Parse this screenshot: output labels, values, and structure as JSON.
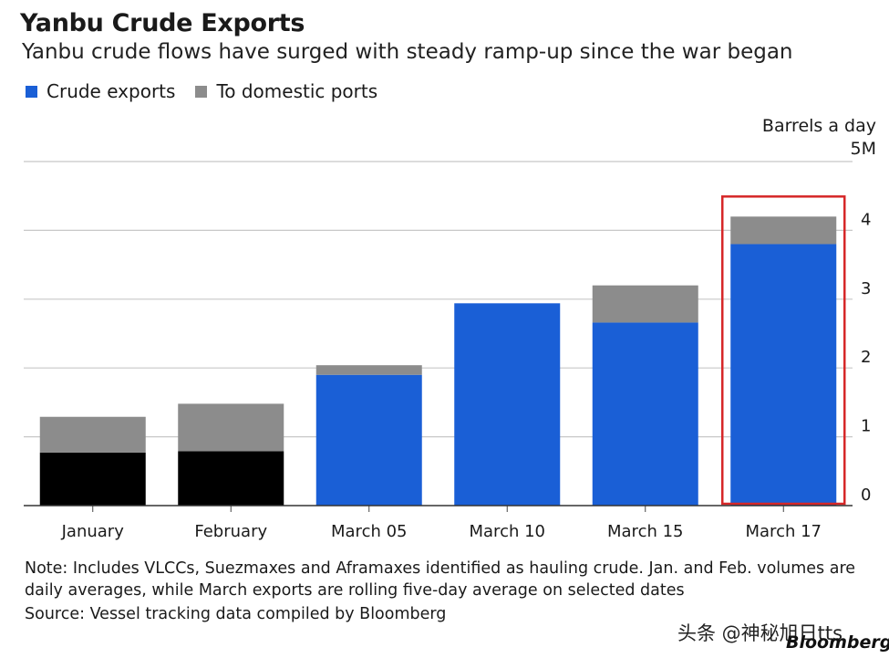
{
  "header": {
    "title": "Yanbu Crude Exports",
    "subtitle": "Yanbu crude flows have surged with steady ramp-up since the war began"
  },
  "legend": {
    "items": [
      {
        "label": "Crude exports",
        "color": "#1a5fd6"
      },
      {
        "label": "To domestic ports",
        "color": "#8c8c8c"
      }
    ]
  },
  "axis_unit": {
    "line1": "Barrels a day",
    "line2": "5M"
  },
  "chart_data": {
    "type": "bar",
    "stacked": true,
    "categories": [
      "January",
      "February",
      "March 05",
      "March 10",
      "March 15",
      "March 17"
    ],
    "series": [
      {
        "name": "Crude exports",
        "values": [
          0.77,
          0.79,
          1.9,
          2.94,
          2.66,
          3.8
        ],
        "color": "#1a5fd6"
      },
      {
        "name": "To domestic ports",
        "values": [
          0.52,
          0.69,
          0.14,
          0.0,
          0.54,
          0.4
        ],
        "color": "#8c8c8c"
      }
    ],
    "base_color_override": {
      "January": "#000000",
      "February": "#000000"
    },
    "highlight_category": "March 17",
    "highlight_color": "#d62728",
    "ylim": [
      0,
      5
    ],
    "yticks": [
      0,
      1,
      2,
      3,
      4
    ],
    "ylabel": "Barrels a day",
    "y_axis_side": "right",
    "grid": true
  },
  "footer": {
    "note": "Note: Includes VLCCs, Suezmaxes and Aframaxes identified as hauling crude. Jan. and Feb. volumes are daily averages, while March exports are rolling five-day average on selected dates",
    "source": "Source: Vessel tracking data compiled by Bloomberg",
    "brand": "Bloomberg",
    "watermark": "头条 @神秘旭日tts"
  }
}
